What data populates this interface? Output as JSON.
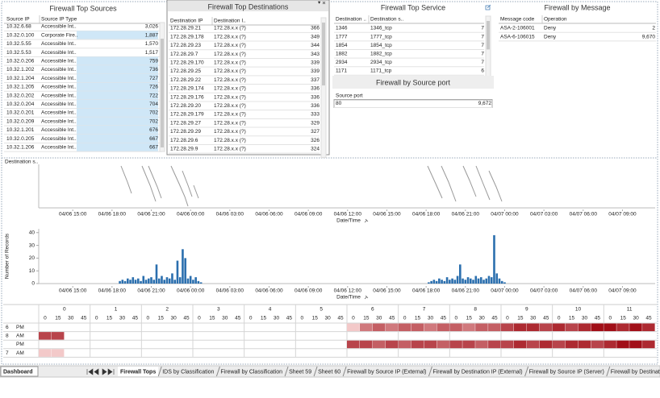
{
  "panels": {
    "sources": {
      "title": "Firewall Top Sources",
      "columns": [
        "Source IP",
        "Source IP Type"
      ],
      "rows": [
        [
          "10.32.6.68",
          "Accessible Int..",
          "3,026"
        ],
        [
          "10.32.0.100",
          "Corporate Fire..",
          "1,887"
        ],
        [
          "10.32.5.55",
          "Accessible Int..",
          "1,570"
        ],
        [
          "10.32.5.53",
          "Accessible Int..",
          "1,517"
        ],
        [
          "10.32.0.206",
          "Accessible Int..",
          "759"
        ],
        [
          "10.32.1.202",
          "Accessible Int..",
          "736"
        ],
        [
          "10.32.1.204",
          "Accessible Int..",
          "727"
        ],
        [
          "10.32.1.205",
          "Accessible Int..",
          "726"
        ],
        [
          "10.32.0.202",
          "Accessible Int..",
          "722"
        ],
        [
          "10.32.0.204",
          "Accessible Int..",
          "704"
        ],
        [
          "10.32.0.201",
          "Accessible Int..",
          "702"
        ],
        [
          "10.32.0.209",
          "Accessible Int..",
          "702"
        ],
        [
          "10.32.1.201",
          "Accessible Int..",
          "676"
        ],
        [
          "10.32.0.205",
          "Accessible Int..",
          "667"
        ],
        [
          "10.32.1.206",
          "Accessible Int..",
          "667"
        ]
      ],
      "selected_rows": [
        1,
        4,
        5,
        6,
        7,
        8,
        9,
        10,
        11,
        12,
        13,
        14
      ]
    },
    "destinations": {
      "title": "Firewall Top Destinations",
      "columns": [
        "Destination IP",
        "Destination I.."
      ],
      "rows": [
        [
          "172.28.29.21",
          "172.28.x.x (?)",
          "366"
        ],
        [
          "172.28.29.178",
          "172.28.x.x (?)",
          "349"
        ],
        [
          "172.28.29.23",
          "172.28.x.x (?)",
          "344"
        ],
        [
          "172.28.29.7",
          "172.28.x.x (?)",
          "343"
        ],
        [
          "172.28.29.170",
          "172.28.x.x (?)",
          "339"
        ],
        [
          "172.28.29.25",
          "172.28.x.x (?)",
          "339"
        ],
        [
          "172.28.29.22",
          "172.28.x.x (?)",
          "337"
        ],
        [
          "172.28.29.174",
          "172.28.x.x (?)",
          "336"
        ],
        [
          "172.28.29.176",
          "172.28.x.x (?)",
          "336"
        ],
        [
          "172.28.29.20",
          "172.28.x.x (?)",
          "336"
        ],
        [
          "172.28.29.179",
          "172.28.x.x (?)",
          "333"
        ],
        [
          "172.28.29.27",
          "172.28.x.x (?)",
          "329"
        ],
        [
          "172.28.29.29",
          "172.28.x.x (?)",
          "327"
        ],
        [
          "172.28.29.6",
          "172.28.x.x (?)",
          "326"
        ],
        [
          "172.28.29.9",
          "172.28.x.x (?)",
          "324"
        ]
      ]
    },
    "service": {
      "title": "Firewall Top Service",
      "columns": [
        "Destination ..",
        "Destination s.."
      ],
      "rows": [
        [
          "1346",
          "1346_tcp",
          "7"
        ],
        [
          "1777",
          "1777_tcp",
          "7"
        ],
        [
          "1854",
          "1854_tcp",
          "7"
        ],
        [
          "1882",
          "1882_tcp",
          "7"
        ],
        [
          "2934",
          "2934_tcp",
          "7"
        ],
        [
          "1171",
          "1171_tcp",
          "6"
        ]
      ]
    },
    "source_port": {
      "title": "Firewall by Source port",
      "columns": [
        "Source port"
      ],
      "rows": [
        [
          "80",
          "9,672"
        ]
      ]
    },
    "message": {
      "title": "Firewall by Message",
      "columns": [
        "Message code",
        "Operation"
      ],
      "rows": [
        [
          "ASA-2-106001",
          "Deny",
          "2"
        ],
        [
          "ASA-6-106015",
          "Deny",
          "9,670"
        ]
      ]
    }
  },
  "timeline": {
    "y_label": "Destination s.."
  },
  "chart_data": {
    "type": "bar",
    "y_label": "Number of Records",
    "x_label": "Date/Time",
    "color": "#2b6fae",
    "xlim": [
      -2.6,
      44.5
    ],
    "xticks": [
      {
        "value": 0,
        "label": "04/06 15:00"
      },
      {
        "value": 3,
        "label": "04/06 18:00"
      },
      {
        "value": 6,
        "label": "04/06 21:00"
      },
      {
        "value": 9,
        "label": "04/06 00:00"
      },
      {
        "value": 12,
        "label": "04/06 03:00"
      },
      {
        "value": 15,
        "label": "04/06 06:00"
      },
      {
        "value": 18,
        "label": "04/06 09:00"
      },
      {
        "value": 21,
        "label": "04/06 12:00"
      },
      {
        "value": 24,
        "label": "04/06 15:00"
      },
      {
        "value": 27,
        "label": "04/06 18:00"
      },
      {
        "value": 30,
        "label": "04/06 21:00"
      },
      {
        "value": 33,
        "label": "04/07 00:00"
      },
      {
        "value": 36,
        "label": "04/07 03:00"
      },
      {
        "value": 39,
        "label": "04/07 06:00"
      },
      {
        "value": 42,
        "label": "04/07 09:00"
      }
    ],
    "ylim": [
      0,
      43
    ],
    "yticks": [
      0,
      10,
      20,
      30,
      40
    ],
    "x": [
      3.6,
      3.8,
      4.0,
      4.2,
      4.4,
      4.6,
      4.8,
      5.0,
      5.2,
      5.4,
      5.6,
      5.8,
      6.0,
      6.2,
      6.4,
      6.6,
      6.8,
      7.0,
      7.2,
      7.4,
      7.6,
      7.8,
      8.0,
      8.2,
      8.4,
      8.6,
      8.8,
      9.0,
      9.2,
      9.4,
      9.6,
      9.8,
      27.2,
      27.4,
      27.6,
      27.8,
      28.0,
      28.2,
      28.4,
      28.6,
      28.8,
      29.0,
      29.2,
      29.4,
      29.6,
      29.8,
      30.0,
      30.2,
      30.4,
      30.6,
      30.8,
      31.0,
      31.2,
      31.4,
      31.6,
      31.8,
      32.0,
      32.2,
      32.4,
      32.6,
      32.8,
      33.0
    ],
    "values": [
      2,
      3,
      2,
      4,
      3,
      5,
      3,
      4,
      2,
      6,
      3,
      4,
      5,
      3,
      15,
      4,
      6,
      3,
      5,
      4,
      8,
      3,
      18,
      5,
      27,
      20,
      4,
      6,
      3,
      5,
      2,
      1,
      1,
      2,
      3,
      2,
      4,
      3,
      2,
      5,
      3,
      4,
      3,
      6,
      15,
      4,
      3,
      5,
      4,
      3,
      6,
      4,
      5,
      3,
      4,
      6,
      5,
      38,
      8,
      4,
      2,
      1
    ]
  },
  "heatmap": {
    "hours": [
      0,
      1,
      2,
      3,
      4,
      5,
      6,
      7,
      8,
      9,
      10,
      11
    ],
    "minutes": [
      0,
      15,
      30,
      45
    ],
    "color_range": [
      "#f3c9c9",
      "#a10f18"
    ],
    "rows": [
      {
        "day": "6",
        "period": "PM",
        "values": [
          null,
          null,
          null,
          null,
          null,
          null,
          null,
          null,
          null,
          null,
          null,
          null,
          null,
          null,
          null,
          null,
          null,
          null,
          null,
          null,
          null,
          null,
          null,
          null,
          2,
          5,
          6,
          5,
          6,
          6,
          5,
          6,
          6,
          5,
          6,
          6,
          7,
          8,
          8,
          7,
          8,
          7,
          8,
          9,
          9,
          8,
          9,
          8
        ]
      },
      {
        "day": "8",
        "period": "AM",
        "values": [
          7,
          7,
          null,
          null,
          null,
          null,
          null,
          null,
          null,
          null,
          null,
          null,
          null,
          null,
          null,
          null,
          null,
          null,
          null,
          null,
          null,
          null,
          null,
          null,
          null,
          null,
          null,
          null,
          null,
          null,
          null,
          null,
          null,
          null,
          null,
          null,
          null,
          null,
          null,
          null,
          null,
          null,
          null,
          null,
          null,
          null,
          null,
          null
        ]
      },
      {
        "day": null,
        "period": "PM",
        "values": [
          null,
          null,
          null,
          null,
          null,
          null,
          null,
          null,
          null,
          null,
          null,
          null,
          null,
          null,
          null,
          null,
          null,
          null,
          null,
          null,
          null,
          null,
          null,
          null,
          7,
          7,
          6,
          7,
          6,
          7,
          7,
          6,
          7,
          7,
          6,
          7,
          7,
          8,
          7,
          8,
          7,
          8,
          8,
          7,
          8,
          9,
          9,
          8
        ]
      },
      {
        "day": "7",
        "period": "AM",
        "values": [
          2,
          2,
          null,
          null,
          null,
          null,
          null,
          null,
          null,
          null,
          null,
          null,
          null,
          null,
          null,
          null,
          null,
          null,
          null,
          null,
          null,
          null,
          null,
          null,
          null,
          null,
          null,
          null,
          null,
          null,
          null,
          null,
          null,
          null,
          null,
          null,
          null,
          null,
          null,
          null,
          null,
          null,
          null,
          null,
          null,
          null,
          null,
          null
        ]
      }
    ]
  },
  "tabs": {
    "dashboard": "Dashboard",
    "active": 0,
    "items": [
      "Firewall Tops",
      "IDS by Classification",
      "Firewall by Classification",
      "Sheet 59",
      "Sheet 60",
      "Firewall by Source IP (External)",
      "Firewall by Destination IP (External)",
      "Firewall by Source IP (Server)",
      "Firewall by Destination IP (Serve"
    ]
  }
}
